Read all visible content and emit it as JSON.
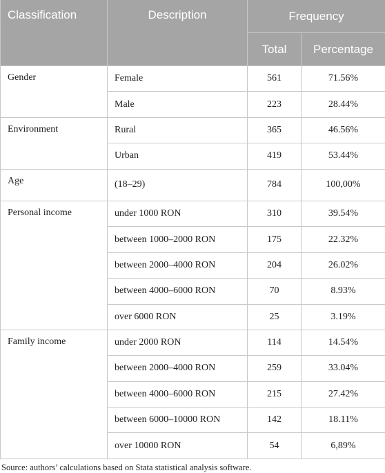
{
  "table": {
    "headers": {
      "classification": "Classification",
      "description": "Description",
      "frequency": "Frequency",
      "total": "Total",
      "percentage": "Percentage"
    },
    "groups": [
      {
        "classification": "Gender",
        "rows": [
          [
            "Female",
            "561",
            "71.56%"
          ],
          [
            "Male",
            "223",
            "28.44%"
          ]
        ]
      },
      {
        "classification": "Environment",
        "rows": [
          [
            "Rural",
            "365",
            "46.56%"
          ],
          [
            "Urban",
            "419",
            "53.44%"
          ]
        ]
      },
      {
        "classification": "Age",
        "rows": [
          [
            "(18–29)",
            "784",
            "100,00%"
          ]
        ]
      },
      {
        "classification": "Personal income",
        "rows": [
          [
            "under 1000 RON",
            "310",
            "39.54%"
          ],
          [
            "between 1000–2000 RON",
            "175",
            "22.32%"
          ],
          [
            "between 2000–4000 RON",
            "204",
            "26.02%"
          ],
          [
            "between 4000–6000 RON",
            "70",
            "8.93%"
          ],
          [
            "over 6000 RON",
            "25",
            "3.19%"
          ]
        ]
      },
      {
        "classification": "Family income",
        "rows": [
          [
            "under 2000 RON",
            "114",
            "14.54%"
          ],
          [
            "between 2000–4000 RON",
            "259",
            "33.04%"
          ],
          [
            "between 4000–6000 RON",
            "215",
            "27.42%"
          ],
          [
            "between 6000–10000 RON",
            "142",
            "18.11%"
          ],
          [
            "over 10000 RON",
            "54",
            "6,89%"
          ]
        ]
      }
    ]
  },
  "source": "Source: authors’ calculations based on Stata statistical analysis software."
}
